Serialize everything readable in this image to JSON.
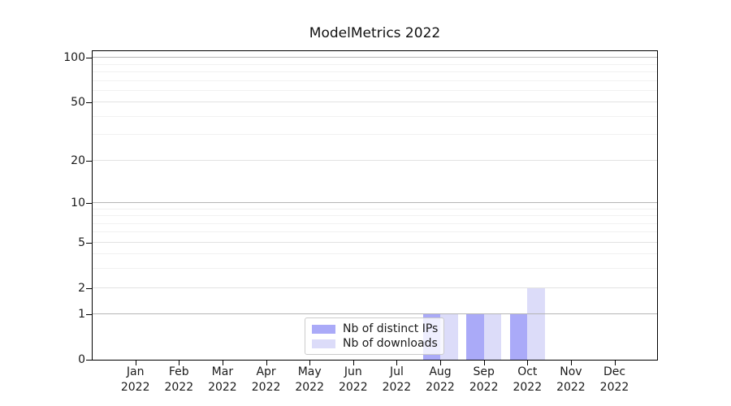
{
  "figure": {
    "title": "ModelMetrics 2022"
  },
  "chart_data": {
    "type": "bar",
    "title": "ModelMetrics 2022",
    "xlabel": "",
    "ylabel": "",
    "categories": [
      "Jan 2022",
      "Feb 2022",
      "Mar 2022",
      "Apr 2022",
      "May 2022",
      "Jun 2022",
      "Jul 2022",
      "Aug 2022",
      "Sep 2022",
      "Oct 2022",
      "Nov 2022",
      "Dec 2022"
    ],
    "series": [
      {
        "name": "Nb of distinct IPs",
        "color": "#aaaaf8",
        "values": [
          0,
          0,
          0,
          0,
          0,
          0,
          0,
          1,
          1,
          1,
          0,
          0
        ]
      },
      {
        "name": "Nb of downloads",
        "color": "#dcdcf9",
        "values": [
          0,
          0,
          0,
          0,
          0,
          0,
          0,
          1,
          1,
          2,
          0,
          0
        ]
      }
    ],
    "yscale": "log1p",
    "ylim": [
      0,
      111
    ],
    "y_major_ticks": [
      0,
      1,
      2,
      5,
      10,
      20,
      50,
      100
    ],
    "y_emphasized_gridlines": [
      1,
      10,
      100
    ],
    "y_minor_gridlines": [
      3,
      4,
      6,
      7,
      8,
      9,
      30,
      40,
      60,
      70,
      80,
      90
    ],
    "grid": true,
    "legend_position": "lower center"
  }
}
